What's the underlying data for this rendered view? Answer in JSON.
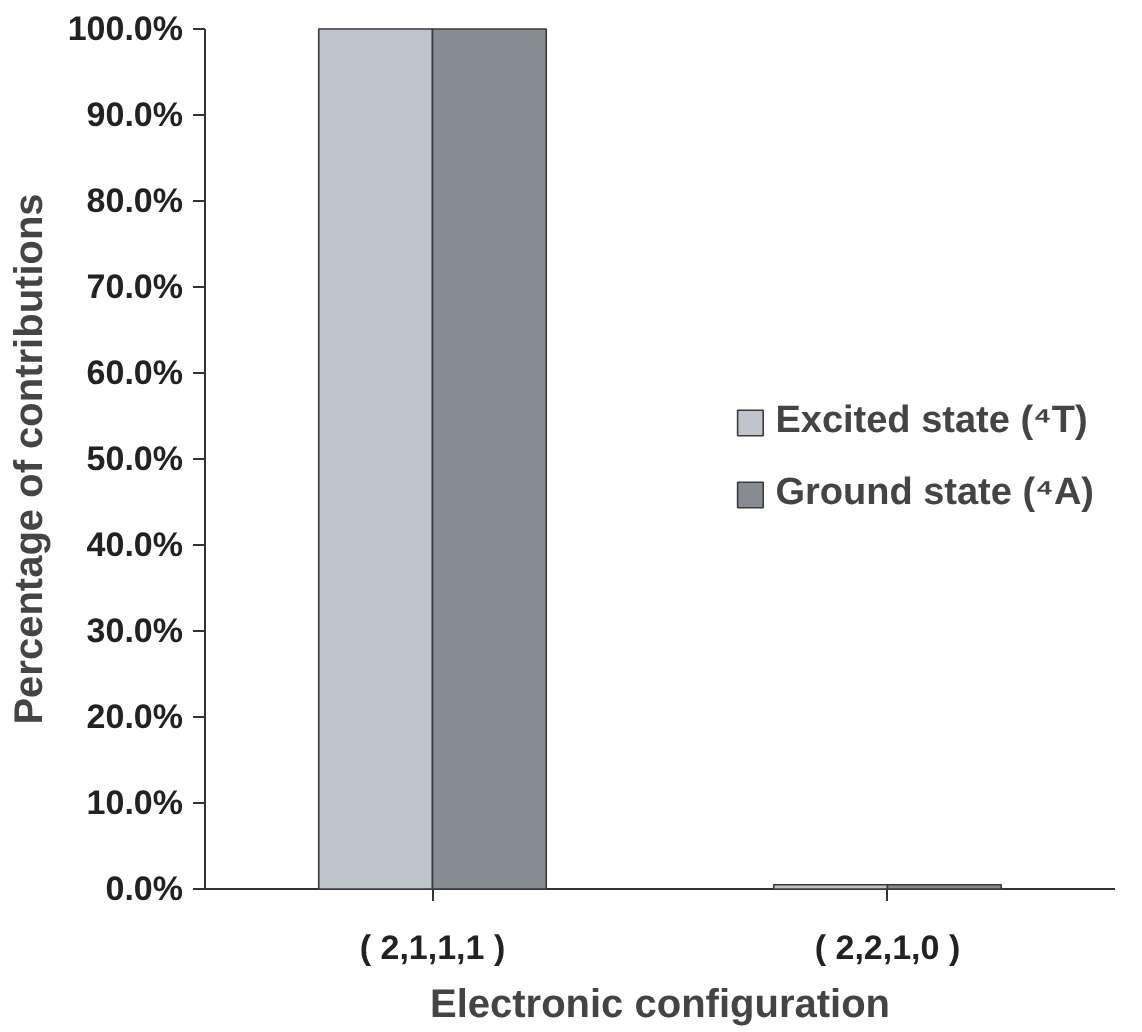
{
  "chart_data": {
    "type": "bar",
    "xlabel": "Electronic configuration",
    "ylabel": "Percentage of contributions",
    "categories": [
      "( 2,1,1,1 )",
      "( 2,2,1,0 )"
    ],
    "series": [
      {
        "name": "Excited state (⁴T)",
        "color": "#c0c4cc",
        "values": [
          100.0,
          0.5
        ]
      },
      {
        "name": "Ground state (⁴A)",
        "color": "#878c92",
        "values": [
          100.0,
          0.5
        ]
      }
    ],
    "ylim": [
      0,
      100
    ],
    "yticks": [
      {
        "value": 0,
        "label": "0.0%"
      },
      {
        "value": 10,
        "label": "10.0%"
      },
      {
        "value": 20,
        "label": "20.0%"
      },
      {
        "value": 30,
        "label": "30.0%"
      },
      {
        "value": 40,
        "label": "40.0%"
      },
      {
        "value": 50,
        "label": "50.0%"
      },
      {
        "value": 60,
        "label": "60.0%"
      },
      {
        "value": 70,
        "label": "70.0%"
      },
      {
        "value": 80,
        "label": "80.0%"
      },
      {
        "value": 90,
        "label": "90.0%"
      },
      {
        "value": 100,
        "label": "100.0%"
      }
    ],
    "grid": false,
    "legend": "right"
  }
}
